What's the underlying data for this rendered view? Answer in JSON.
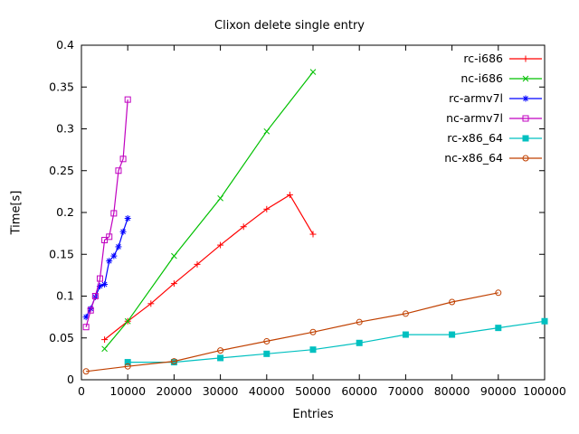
{
  "chart_data": {
    "type": "line",
    "title": "Clixon delete single entry",
    "xlabel": "Entries",
    "ylabel": "Time[s]",
    "xlim": [
      0,
      100000
    ],
    "ylim": [
      0,
      0.4
    ],
    "xticks": [
      0,
      10000,
      20000,
      30000,
      40000,
      50000,
      60000,
      70000,
      80000,
      90000,
      100000
    ],
    "xtick_labels": [
      "0",
      "10000",
      "20000",
      "30000",
      "40000",
      "50000",
      "60000",
      "70000",
      "80000",
      "90000",
      "100000"
    ],
    "yticks": [
      0,
      0.05,
      0.1,
      0.15,
      0.2,
      0.25,
      0.3,
      0.35,
      0.4
    ],
    "ytick_labels": [
      "0",
      "0.05",
      "0.1",
      "0.15",
      "0.2",
      "0.25",
      "0.3",
      "0.35",
      "0.4"
    ],
    "grid": false,
    "legend_position": "top-right-inside",
    "border_color": "#000000",
    "series": [
      {
        "name": "rc-i686",
        "color": "#ff0000",
        "marker": "plus",
        "points": [
          [
            5000,
            0.048
          ],
          [
            10000,
            0.07
          ],
          [
            15000,
            0.091
          ],
          [
            20000,
            0.115
          ],
          [
            25000,
            0.138
          ],
          [
            30000,
            0.161
          ],
          [
            35000,
            0.183
          ],
          [
            40000,
            0.204
          ],
          [
            45000,
            0.221
          ],
          [
            50000,
            0.174
          ]
        ]
      },
      {
        "name": "nc-i686",
        "color": "#00c000",
        "marker": "cross",
        "points": [
          [
            5000,
            0.037
          ],
          [
            10000,
            0.07
          ],
          [
            20000,
            0.148
          ],
          [
            30000,
            0.217
          ],
          [
            40000,
            0.297
          ],
          [
            50000,
            0.368
          ]
        ]
      },
      {
        "name": "rc-armv7l",
        "color": "#0000ff",
        "marker": "asterisk",
        "points": [
          [
            1000,
            0.075
          ],
          [
            2000,
            0.085
          ],
          [
            3000,
            0.099
          ],
          [
            4000,
            0.112
          ],
          [
            5000,
            0.114
          ],
          [
            6000,
            0.142
          ],
          [
            7000,
            0.148
          ],
          [
            8000,
            0.159
          ],
          [
            9000,
            0.177
          ],
          [
            10000,
            0.193
          ]
        ]
      },
      {
        "name": "nc-armv7l",
        "color": "#c000c0",
        "marker": "square-open",
        "points": [
          [
            1000,
            0.063
          ],
          [
            2000,
            0.083
          ],
          [
            3000,
            0.1
          ],
          [
            4000,
            0.121
          ],
          [
            5000,
            0.167
          ],
          [
            6000,
            0.171
          ],
          [
            7000,
            0.199
          ],
          [
            8000,
            0.25
          ],
          [
            9000,
            0.264
          ],
          [
            10000,
            0.335
          ]
        ]
      },
      {
        "name": "rc-x86_64",
        "color": "#00c0c0",
        "marker": "square-filled",
        "points": [
          [
            10000,
            0.021
          ],
          [
            20000,
            0.021
          ],
          [
            30000,
            0.026
          ],
          [
            40000,
            0.031
          ],
          [
            50000,
            0.036
          ],
          [
            60000,
            0.044
          ],
          [
            70000,
            0.054
          ],
          [
            80000,
            0.054
          ],
          [
            90000,
            0.062
          ],
          [
            100000,
            0.07
          ]
        ]
      },
      {
        "name": "nc-x86_64",
        "color": "#c04000",
        "marker": "circle-open",
        "points": [
          [
            1000,
            0.01
          ],
          [
            10000,
            0.016
          ],
          [
            20000,
            0.022
          ],
          [
            30000,
            0.035
          ],
          [
            40000,
            0.046
          ],
          [
            50000,
            0.057
          ],
          [
            60000,
            0.069
          ],
          [
            70000,
            0.079
          ],
          [
            80000,
            0.093
          ],
          [
            90000,
            0.104
          ]
        ]
      }
    ]
  }
}
